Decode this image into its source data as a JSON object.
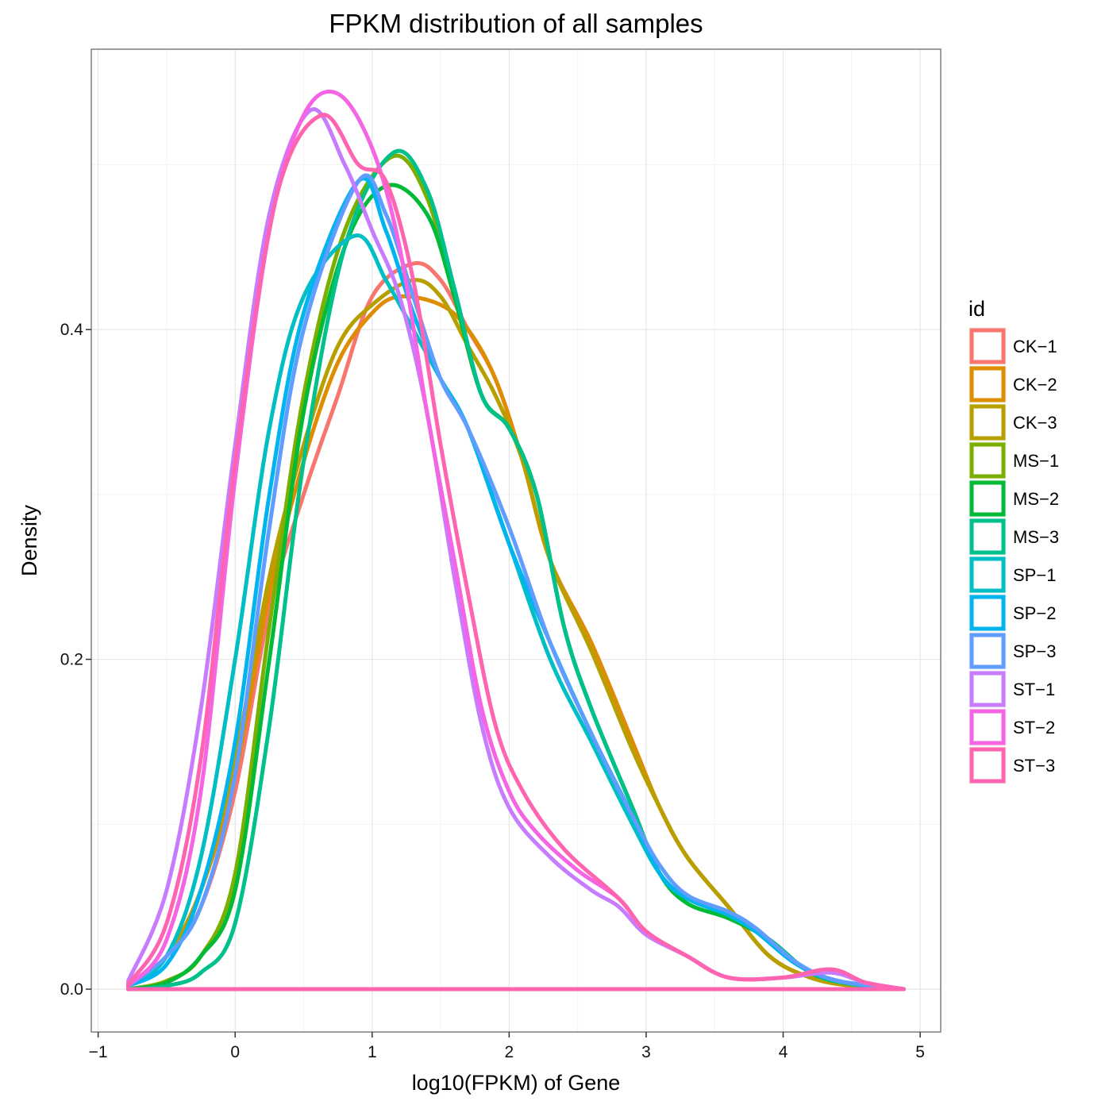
{
  "chart_data": {
    "type": "line",
    "subtype": "density",
    "title": "FPKM distribution of all samples",
    "xlabel": "log10(FPKM) of Gene",
    "ylabel": "Density",
    "xlim": [
      -1.05,
      5.15
    ],
    "ylim": [
      -0.026,
      0.57
    ],
    "xticks": [
      -1,
      0,
      1,
      2,
      3,
      4,
      5
    ],
    "xtick_labels": [
      "−1",
      "0",
      "1",
      "2",
      "3",
      "4",
      "5"
    ],
    "yticks": [
      0.0,
      0.2,
      0.4
    ],
    "ytick_labels": [
      "0.0",
      "0.2",
      "0.4"
    ],
    "grid": true,
    "legend": {
      "title": "id",
      "position": "right"
    },
    "series": [
      {
        "name": "CK−1",
        "color": "#F8766D",
        "points": [
          [
            -0.78,
            0.002
          ],
          [
            -0.5,
            0.02
          ],
          [
            -0.25,
            0.05
          ],
          [
            0,
            0.12
          ],
          [
            0.25,
            0.23
          ],
          [
            0.5,
            0.3
          ],
          [
            0.75,
            0.36
          ],
          [
            1.0,
            0.42
          ],
          [
            1.3,
            0.44
          ],
          [
            1.5,
            0.43
          ],
          [
            1.7,
            0.4
          ],
          [
            1.9,
            0.37
          ],
          [
            2.1,
            0.32
          ],
          [
            2.3,
            0.26
          ],
          [
            2.6,
            0.21
          ],
          [
            2.9,
            0.15
          ],
          [
            3.1,
            0.11
          ],
          [
            3.3,
            0.08
          ],
          [
            3.6,
            0.05
          ],
          [
            3.9,
            0.02
          ],
          [
            4.2,
            0.007
          ],
          [
            4.5,
            0.002
          ],
          [
            4.88,
            0
          ]
        ]
      },
      {
        "name": "CK−2",
        "color": "#DE8C00",
        "points": [
          [
            -0.78,
            0.002
          ],
          [
            -0.5,
            0.02
          ],
          [
            -0.25,
            0.06
          ],
          [
            0,
            0.13
          ],
          [
            0.25,
            0.24
          ],
          [
            0.5,
            0.32
          ],
          [
            0.75,
            0.38
          ],
          [
            1.0,
            0.41
          ],
          [
            1.2,
            0.42
          ],
          [
            1.5,
            0.415
          ],
          [
            1.7,
            0.4
          ],
          [
            1.9,
            0.37
          ],
          [
            2.1,
            0.32
          ],
          [
            2.3,
            0.26
          ],
          [
            2.6,
            0.21
          ],
          [
            2.9,
            0.15
          ],
          [
            3.1,
            0.11
          ],
          [
            3.3,
            0.08
          ],
          [
            3.6,
            0.05
          ],
          [
            3.9,
            0.02
          ],
          [
            4.2,
            0.007
          ],
          [
            4.5,
            0.002
          ],
          [
            4.88,
            0
          ]
        ]
      },
      {
        "name": "CK−3",
        "color": "#B79F00",
        "points": [
          [
            -0.78,
            0.002
          ],
          [
            -0.5,
            0.02
          ],
          [
            -0.25,
            0.06
          ],
          [
            0,
            0.14
          ],
          [
            0.25,
            0.25
          ],
          [
            0.5,
            0.33
          ],
          [
            0.75,
            0.39
          ],
          [
            1.0,
            0.415
          ],
          [
            1.3,
            0.43
          ],
          [
            1.5,
            0.42
          ],
          [
            1.7,
            0.39
          ],
          [
            1.9,
            0.36
          ],
          [
            2.1,
            0.32
          ],
          [
            2.3,
            0.26
          ],
          [
            2.6,
            0.205
          ],
          [
            2.9,
            0.145
          ],
          [
            3.1,
            0.11
          ],
          [
            3.3,
            0.08
          ],
          [
            3.6,
            0.05
          ],
          [
            3.9,
            0.02
          ],
          [
            4.2,
            0.007
          ],
          [
            4.5,
            0.002
          ],
          [
            4.88,
            0
          ]
        ]
      },
      {
        "name": "MS−1",
        "color": "#7CAE00",
        "points": [
          [
            -0.78,
            0
          ],
          [
            -0.5,
            0.005
          ],
          [
            -0.25,
            0.02
          ],
          [
            0,
            0.07
          ],
          [
            0.25,
            0.22
          ],
          [
            0.5,
            0.36
          ],
          [
            0.8,
            0.46
          ],
          [
            1.15,
            0.505
          ],
          [
            1.4,
            0.48
          ],
          [
            1.6,
            0.42
          ],
          [
            1.8,
            0.36
          ],
          [
            2.0,
            0.34
          ],
          [
            2.2,
            0.3
          ],
          [
            2.4,
            0.22
          ],
          [
            2.6,
            0.17
          ],
          [
            2.9,
            0.11
          ],
          [
            3.1,
            0.07
          ],
          [
            3.3,
            0.055
          ],
          [
            3.6,
            0.045
          ],
          [
            3.9,
            0.03
          ],
          [
            4.2,
            0.01
          ],
          [
            4.5,
            0.003
          ],
          [
            4.88,
            0
          ]
        ]
      },
      {
        "name": "MS−2",
        "color": "#00BA38",
        "points": [
          [
            -0.78,
            0
          ],
          [
            -0.5,
            0.004
          ],
          [
            -0.25,
            0.02
          ],
          [
            0,
            0.06
          ],
          [
            0.25,
            0.2
          ],
          [
            0.5,
            0.35
          ],
          [
            0.8,
            0.45
          ],
          [
            1.1,
            0.487
          ],
          [
            1.4,
            0.47
          ],
          [
            1.6,
            0.42
          ],
          [
            1.8,
            0.36
          ],
          [
            2.0,
            0.34
          ],
          [
            2.2,
            0.3
          ],
          [
            2.4,
            0.22
          ],
          [
            2.6,
            0.17
          ],
          [
            2.9,
            0.11
          ],
          [
            3.1,
            0.07
          ],
          [
            3.3,
            0.052
          ],
          [
            3.6,
            0.043
          ],
          [
            3.9,
            0.03
          ],
          [
            4.2,
            0.01
          ],
          [
            4.5,
            0.003
          ],
          [
            4.88,
            0
          ]
        ]
      },
      {
        "name": "MS−3",
        "color": "#00C08B",
        "points": [
          [
            -0.78,
            0
          ],
          [
            -0.5,
            0.002
          ],
          [
            -0.25,
            0.01
          ],
          [
            0,
            0.04
          ],
          [
            0.25,
            0.16
          ],
          [
            0.5,
            0.32
          ],
          [
            0.8,
            0.45
          ],
          [
            1.15,
            0.507
          ],
          [
            1.4,
            0.485
          ],
          [
            1.6,
            0.425
          ],
          [
            1.8,
            0.36
          ],
          [
            2.0,
            0.34
          ],
          [
            2.2,
            0.3
          ],
          [
            2.4,
            0.22
          ],
          [
            2.6,
            0.17
          ],
          [
            2.9,
            0.11
          ],
          [
            3.1,
            0.07
          ],
          [
            3.3,
            0.055
          ],
          [
            3.6,
            0.045
          ],
          [
            3.9,
            0.03
          ],
          [
            4.2,
            0.01
          ],
          [
            4.5,
            0.003
          ],
          [
            4.88,
            0
          ]
        ]
      },
      {
        "name": "SP−1",
        "color": "#00BFC4",
        "points": [
          [
            -0.78,
            0.002
          ],
          [
            -0.5,
            0.02
          ],
          [
            -0.25,
            0.08
          ],
          [
            0,
            0.2
          ],
          [
            0.25,
            0.34
          ],
          [
            0.5,
            0.42
          ],
          [
            0.88,
            0.457
          ],
          [
            1.1,
            0.43
          ],
          [
            1.3,
            0.4
          ],
          [
            1.5,
            0.37
          ],
          [
            1.7,
            0.34
          ],
          [
            2.0,
            0.27
          ],
          [
            2.3,
            0.2
          ],
          [
            2.6,
            0.15
          ],
          [
            2.9,
            0.1
          ],
          [
            3.1,
            0.07
          ],
          [
            3.3,
            0.055
          ],
          [
            3.6,
            0.045
          ],
          [
            3.8,
            0.035
          ],
          [
            4.1,
            0.015
          ],
          [
            4.4,
            0.005
          ],
          [
            4.88,
            0
          ]
        ]
      },
      {
        "name": "SP−2",
        "color": "#00B4F0",
        "points": [
          [
            -0.78,
            0.002
          ],
          [
            -0.5,
            0.015
          ],
          [
            -0.25,
            0.06
          ],
          [
            0,
            0.15
          ],
          [
            0.25,
            0.3
          ],
          [
            0.5,
            0.41
          ],
          [
            0.9,
            0.49
          ],
          [
            1.1,
            0.46
          ],
          [
            1.3,
            0.41
          ],
          [
            1.5,
            0.37
          ],
          [
            1.7,
            0.34
          ],
          [
            2.0,
            0.27
          ],
          [
            2.3,
            0.21
          ],
          [
            2.6,
            0.155
          ],
          [
            2.9,
            0.105
          ],
          [
            3.1,
            0.07
          ],
          [
            3.3,
            0.055
          ],
          [
            3.6,
            0.045
          ],
          [
            3.8,
            0.035
          ],
          [
            4.1,
            0.015
          ],
          [
            4.4,
            0.005
          ],
          [
            4.88,
            0
          ]
        ]
      },
      {
        "name": "SP−3",
        "color": "#619CFF",
        "points": [
          [
            -0.78,
            0.002
          ],
          [
            -0.5,
            0.02
          ],
          [
            -0.25,
            0.05
          ],
          [
            0,
            0.13
          ],
          [
            0.25,
            0.28
          ],
          [
            0.5,
            0.4
          ],
          [
            0.9,
            0.49
          ],
          [
            1.1,
            0.47
          ],
          [
            1.3,
            0.42
          ],
          [
            1.5,
            0.37
          ],
          [
            1.7,
            0.34
          ],
          [
            2.0,
            0.28
          ],
          [
            2.3,
            0.21
          ],
          [
            2.6,
            0.155
          ],
          [
            2.9,
            0.105
          ],
          [
            3.1,
            0.075
          ],
          [
            3.3,
            0.057
          ],
          [
            3.6,
            0.047
          ],
          [
            3.8,
            0.037
          ],
          [
            4.1,
            0.016
          ],
          [
            4.4,
            0.005
          ],
          [
            4.88,
            0
          ]
        ]
      },
      {
        "name": "ST−1",
        "color": "#C77CFF",
        "points": [
          [
            -0.78,
            0.005
          ],
          [
            -0.5,
            0.06
          ],
          [
            -0.25,
            0.17
          ],
          [
            0,
            0.33
          ],
          [
            0.25,
            0.47
          ],
          [
            0.55,
            0.533
          ],
          [
            0.8,
            0.5
          ],
          [
            1.0,
            0.46
          ],
          [
            1.2,
            0.42
          ],
          [
            1.4,
            0.35
          ],
          [
            1.6,
            0.25
          ],
          [
            1.8,
            0.16
          ],
          [
            2.0,
            0.11
          ],
          [
            2.3,
            0.08
          ],
          [
            2.6,
            0.06
          ],
          [
            2.8,
            0.05
          ],
          [
            3.0,
            0.033
          ],
          [
            3.3,
            0.02
          ],
          [
            3.6,
            0.007
          ],
          [
            4.0,
            0.007
          ],
          [
            4.35,
            0.01
          ],
          [
            4.6,
            0.004
          ],
          [
            4.88,
            0
          ]
        ]
      },
      {
        "name": "ST−2",
        "color": "#F564E3",
        "points": [
          [
            -0.78,
            0.002
          ],
          [
            -0.5,
            0.03
          ],
          [
            -0.25,
            0.12
          ],
          [
            0,
            0.31
          ],
          [
            0.25,
            0.46
          ],
          [
            0.5,
            0.53
          ],
          [
            0.75,
            0.543
          ],
          [
            1.0,
            0.51
          ],
          [
            1.2,
            0.45
          ],
          [
            1.4,
            0.35
          ],
          [
            1.6,
            0.26
          ],
          [
            1.8,
            0.17
          ],
          [
            2.0,
            0.12
          ],
          [
            2.2,
            0.095
          ],
          [
            2.5,
            0.072
          ],
          [
            2.8,
            0.055
          ],
          [
            3.0,
            0.035
          ],
          [
            3.3,
            0.02
          ],
          [
            3.6,
            0.007
          ],
          [
            4.0,
            0.007
          ],
          [
            4.35,
            0.012
          ],
          [
            4.6,
            0.004
          ],
          [
            4.88,
            0
          ]
        ]
      },
      {
        "name": "ST−3",
        "color": "#FF64B0",
        "points": [
          [
            -0.78,
            0.003
          ],
          [
            -0.5,
            0.04
          ],
          [
            -0.25,
            0.14
          ],
          [
            0,
            0.32
          ],
          [
            0.3,
            0.48
          ],
          [
            0.63,
            0.53
          ],
          [
            0.9,
            0.5
          ],
          [
            1.1,
            0.49
          ],
          [
            1.3,
            0.43
          ],
          [
            1.5,
            0.33
          ],
          [
            1.7,
            0.24
          ],
          [
            1.9,
            0.16
          ],
          [
            2.1,
            0.12
          ],
          [
            2.4,
            0.085
          ],
          [
            2.8,
            0.055
          ],
          [
            3.0,
            0.035
          ],
          [
            3.3,
            0.02
          ],
          [
            3.6,
            0.007
          ],
          [
            4.0,
            0.007
          ],
          [
            4.35,
            0.012
          ],
          [
            4.6,
            0.004
          ],
          [
            4.88,
            0
          ]
        ]
      }
    ]
  }
}
